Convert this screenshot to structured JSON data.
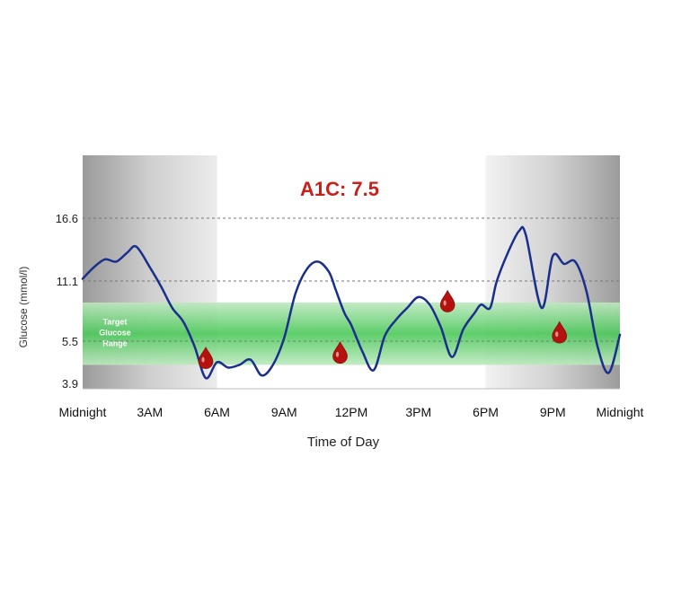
{
  "chart_data": {
    "type": "line",
    "title": "A1C: 7.5",
    "xlabel": "Time of Day",
    "ylabel": "Glucose (mmol/l)",
    "x_ticks": [
      "Midnight",
      "3AM",
      "6AM",
      "9AM",
      "12PM",
      "3PM",
      "6PM",
      "9PM",
      "Midnight"
    ],
    "y_ticks": [
      3.9,
      5.5,
      11.1,
      16.6
    ],
    "xlim": [
      0,
      24
    ],
    "ylim": [
      3.6,
      22
    ],
    "target_range": {
      "label_line1": "Target",
      "label_line2": "Glucose",
      "label_line3": "Range",
      "low": 4.6,
      "high": 9.1
    },
    "shaded_periods": [
      [
        0,
        6
      ],
      [
        18,
        24
      ]
    ],
    "series": [
      {
        "color": "#1a2f8c",
        "x": [
          0,
          0.5,
          1.0,
          1.5,
          2.0,
          2.4,
          3.0,
          3.5,
          4.0,
          4.5,
          5.0,
          5.5,
          6.0,
          6.5,
          7.0,
          7.5,
          8.0,
          8.5,
          9.0,
          9.5,
          10.0,
          10.5,
          11.0,
          11.3,
          11.7,
          12.0,
          12.5,
          13.0,
          13.5,
          14.0,
          14.5,
          15.0,
          15.5,
          16.0,
          16.5,
          17.0,
          17.5,
          17.8,
          18.2,
          18.5,
          19.0,
          19.5,
          19.8,
          20.5,
          21.0,
          21.5,
          22.0,
          22.5,
          23.0,
          23.5,
          24.0
        ],
        "y": [
          11.3,
          12.3,
          13.0,
          12.8,
          13.6,
          14.1,
          12.3,
          10.6,
          8.6,
          7.3,
          5.3,
          4.1,
          4.7,
          4.5,
          4.6,
          4.8,
          4.2,
          4.6,
          5.8,
          9.9,
          12.1,
          12.8,
          11.9,
          10.3,
          8.1,
          7.0,
          5.1,
          4.4,
          6.0,
          7.5,
          8.6,
          9.6,
          8.9,
          6.8,
          4.9,
          6.6,
          8.1,
          8.9,
          8.6,
          11.1,
          13.6,
          15.5,
          15.1,
          8.6,
          13.3,
          12.6,
          12.8,
          10.2,
          5.3,
          4.3,
          6.1
        ]
      }
    ],
    "fingerstick_markers": [
      {
        "x": 5.5,
        "y": 4.9
      },
      {
        "x": 11.5,
        "y": 5.1
      },
      {
        "x": 16.3,
        "y": 9.3
      },
      {
        "x": 21.3,
        "y": 6.4
      }
    ],
    "colors": {
      "curve": "#1a2f8c",
      "target_band": "#4cc95a",
      "title": "#c8201b",
      "marker": "#b5120f",
      "grid": "#777777"
    }
  }
}
